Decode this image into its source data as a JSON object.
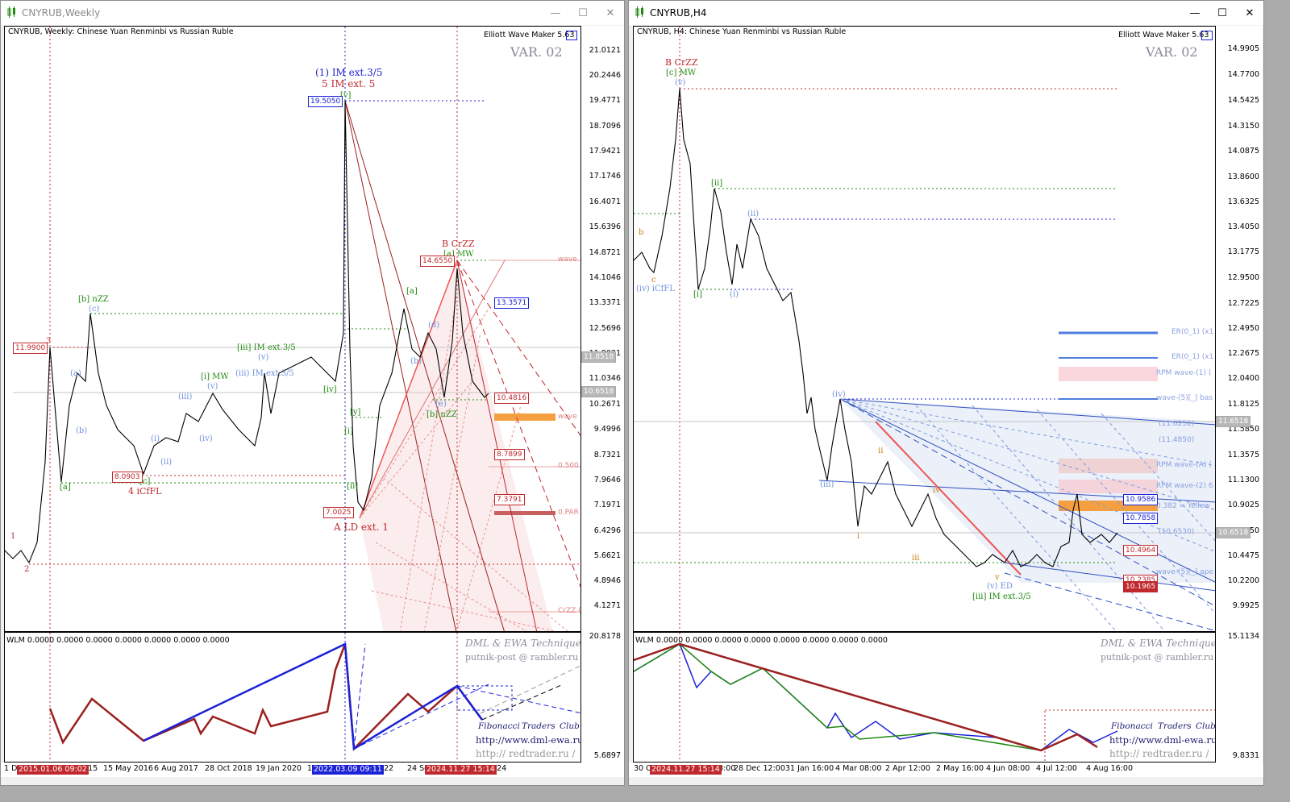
{
  "left": {
    "title": "CNYRUB,Weekly",
    "subtitle": "CNYRUB, Weekly:  Chinese Yuan Renminbi vs Russian Ruble",
    "ewm": "Elliott Wave Maker 5.63",
    "variant": "VAR. 02",
    "price_scale": [
      "21.0121",
      "20.2446",
      "19.4771",
      "18.7096",
      "17.9421",
      "17.1746",
      "16.4071",
      "15.6396",
      "14.8721",
      "14.1046",
      "13.3371",
      "12.5696",
      "11.8021",
      "11.0346",
      "10.2671",
      "9.4996",
      "8.7321",
      "7.9646",
      "7.1971",
      "6.4296",
      "5.6621",
      "4.8946",
      "4.1271"
    ],
    "price_labels": {
      "p1": "11.9900",
      "p2": "19.5050",
      "p3": "14.6550",
      "p4": "13.3571",
      "p5": "10.4816",
      "p6": "8.0903",
      "p7": "7.0025",
      "p8": "8.7899",
      "p9": "7.3791",
      "cur1": "11.8518",
      "cur2": "10.6518"
    },
    "side_labels": [
      "wave",
      "wave",
      "0.500",
      "0.PAR",
      "CrZZ (3"
    ],
    "wave_labels": {
      "top1": "(1) IM ext.3/5",
      "top2": "5 IM ext. 5",
      "b": "B CrZZ",
      "a": "A LD ext. 1",
      "iv4": "4 iCfFL",
      "b_nzz": "[b] nZZ",
      "iii_im": "[iii] IM ext.3/5",
      "i_mw": "[i] MW",
      "iii_im2": "(iii) IM ext.3/5",
      "b_nzz2": "[b] nZZ",
      "a_mw": "[a] MW",
      "n3": "3",
      "n1": "1",
      "n2": "2",
      "sa": "[a]",
      "sc": "[c]",
      "sv": "[v]",
      "siv": "[iv]",
      "sii": "[ii]",
      "si": "[i]",
      "sy": "[y]",
      "pa": "(a)",
      "pb": "(b)",
      "pc": "(c)",
      "pi": "(i)",
      "pii": "(ii)",
      "piii": "(iii)",
      "piv": "(iv)",
      "pv": "(v)",
      "pv2": "(v)",
      "pd": "(d)",
      "pb2": "(b)",
      "pe": "(e)",
      "ia": "[a]"
    },
    "time_scale": [
      "1 De",
      "2015",
      "15 May 2016",
      "6 Aug 2017",
      "28 Oct 2018",
      "19 Jan 2020",
      "11",
      "2022",
      "24 Se",
      "2024"
    ],
    "time_pills": [
      "2015.01.06 09:02",
      "2022.03.09 09:11",
      "2024.11.27 15:14"
    ],
    "indicator": {
      "header": "WLM 0.0000 0.0000 0.0000 0.0000 0.0000 0.0000 0.0000",
      "scale_top": "20.8178",
      "scale_bottom": "5.6897",
      "sig1": "DML & EWA Technique",
      "sig2": "putnik-post @ rambler.ru",
      "fib": [
        "Fibonacci",
        "Traders",
        "Club"
      ],
      "url1": "http://www.dml-ewa.ru",
      "url2": "http:// redtrader.ru /"
    }
  },
  "right": {
    "title": "CNYRUB,H4",
    "subtitle": "CNYRUB, H4:  Chinese Yuan Renminbi vs Russian Ruble",
    "ewm": "Elliott Wave Maker 5.63",
    "variant": "VAR. 02",
    "price_scale": [
      "14.9905",
      "14.7700",
      "14.5425",
      "14.3150",
      "14.0875",
      "13.8600",
      "13.6325",
      "13.4050",
      "13.1775",
      "12.9500",
      "12.7225",
      "12.4950",
      "12.2675",
      "12.0400",
      "11.8125",
      "11.5850",
      "11.3575",
      "11.1300",
      "10.9025",
      "10.6750",
      "10.4475",
      "10.2200",
      "9.9925"
    ],
    "price_labels": {
      "cur1": "11.6518",
      "p1": "10.9586",
      "p2": "10.7858",
      "p3": "10.6518",
      "p4": "10.4964",
      "p5": "10.2385",
      "p6": "10.1965"
    },
    "rpm_labels": [
      "ER(0_1) (x1",
      "ER(0_1) (x1",
      "RPM wave-(1) (",
      "wave-(5)[_] bas",
      "(11.6252)",
      "(11.4850)",
      "RPM wave-(A) (",
      "RPM wave-(2) 6",
      "0.382 = Yellow",
      "(10.6530)",
      "wave-(5)[_] ape"
    ],
    "wave_labels": {
      "b": "B CrZZ",
      "c_mw": "[c] MW",
      "v": "(v)",
      "ii": "[ii]",
      "pii": "(ii)",
      "i": "[i]",
      "pi": "(i)",
      "b_small": "b",
      "c_small": "c",
      "iv_icffl": "(iv) iCfFL",
      "piv": "(iv)",
      "piii": "(iii)",
      "ii_small": "ii",
      "i_small": "i",
      "iii_small": "iii",
      "iv_small": "iv",
      "v_ed": "(v) ED",
      "iii_im": "[iii] IM ext.3/5",
      "v_small": "v"
    },
    "time_scale": [
      "30 O",
      "08:00",
      "28 Dec 12:00",
      "31 Jan 16:00",
      "4 Mar 08:00",
      "2 Apr 12:00",
      "2 May 16:00",
      "4 Jun 08:00",
      "4 Jul 12:00",
      "4 Aug 16:00"
    ],
    "time_pills": [
      "2024.11.27 15:14"
    ],
    "indicator": {
      "header": "WLM 0.0000 0.0000 0.0000 0.0000 0.0000 0.0000 0.0000 0.0000",
      "scale_top": "15.1134",
      "scale_bottom": "9.8331",
      "sig1": "DML & EWA Technique",
      "sig2": "putnik-post @ rambler.ru",
      "fib": [
        "Fibonacci",
        "Traders",
        "Club"
      ],
      "url1": "http://www.dml-ewa.ru",
      "url2": "http:// redtrader.ru /"
    }
  },
  "window_controls": {
    "minimize": "—",
    "maximize": "☐",
    "close": "✕"
  },
  "colors": {
    "red": "#c0282d",
    "blue": "#1c22d6",
    "green": "#1f8a10",
    "orange": "#f5a040"
  }
}
